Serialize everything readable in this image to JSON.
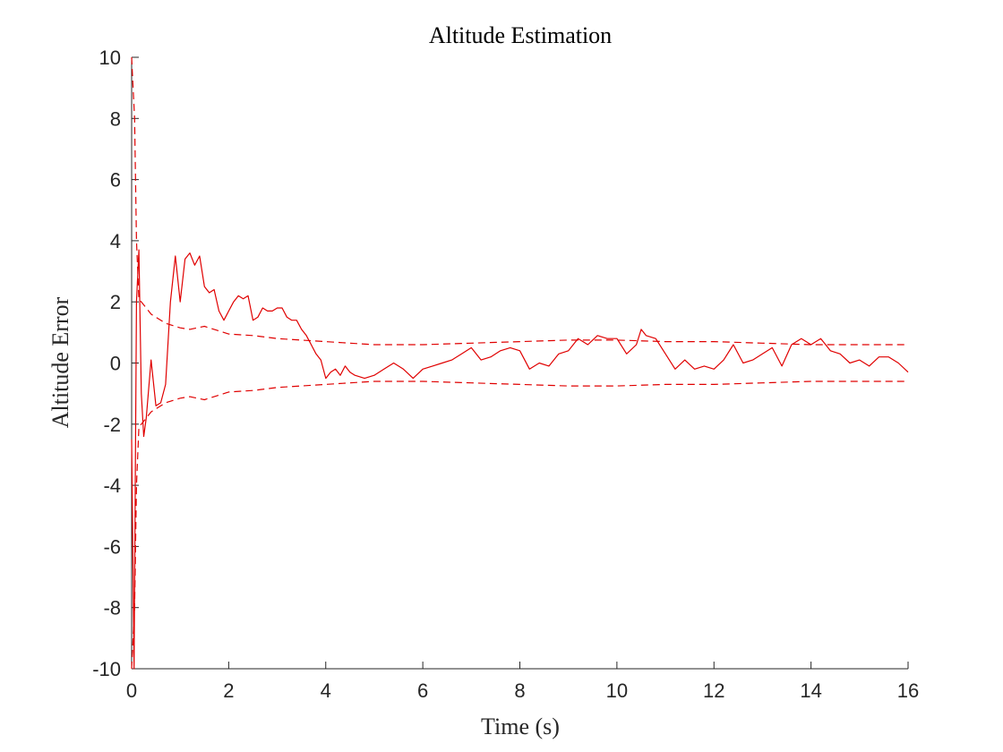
{
  "chart_data": {
    "type": "line",
    "title": "Altitude Estimation",
    "xlabel": "Time (s)",
    "ylabel": "Altitude Error",
    "xlim": [
      0,
      16
    ],
    "ylim": [
      -10,
      10
    ],
    "xticks": [
      "0",
      "2",
      "4",
      "6",
      "8",
      "10",
      "12",
      "14",
      "16"
    ],
    "yticks": [
      "10",
      "8",
      "6",
      "4",
      "2",
      "0",
      "-2",
      "-4",
      "-6",
      "-8",
      "-10"
    ],
    "grid": false,
    "legend": "none",
    "color": "#e00000",
    "series": [
      {
        "role": "error",
        "style": "solid",
        "x": [
          0.0,
          0.05,
          0.1,
          0.15,
          0.2,
          0.25,
          0.3,
          0.4,
          0.5,
          0.6,
          0.7,
          0.8,
          0.9,
          1.0,
          1.1,
          1.2,
          1.3,
          1.4,
          1.5,
          1.6,
          1.7,
          1.8,
          1.9,
          2.0,
          2.1,
          2.2,
          2.3,
          2.4,
          2.5,
          2.6,
          2.7,
          2.8,
          2.9,
          3.0,
          3.1,
          3.2,
          3.3,
          3.4,
          3.5,
          3.6,
          3.7,
          3.8,
          3.9,
          4.0,
          4.1,
          4.2,
          4.3,
          4.4,
          4.5,
          4.6,
          4.8,
          5.0,
          5.2,
          5.4,
          5.6,
          5.8,
          6.0,
          6.2,
          6.4,
          6.6,
          6.8,
          7.0,
          7.2,
          7.4,
          7.6,
          7.8,
          8.0,
          8.2,
          8.4,
          8.6,
          8.8,
          9.0,
          9.2,
          9.4,
          9.6,
          9.8,
          10.0,
          10.2,
          10.4,
          10.5,
          10.6,
          10.8,
          11.0,
          11.2,
          11.4,
          11.6,
          11.8,
          12.0,
          12.2,
          12.4,
          12.6,
          12.8,
          13.0,
          13.2,
          13.4,
          13.6,
          13.8,
          14.0,
          14.2,
          14.4,
          14.6,
          14.8,
          15.0,
          15.2,
          15.4,
          15.6,
          15.8,
          16.0
        ],
        "y": [
          -2.5,
          -10.0,
          2.0,
          3.7,
          -1.0,
          -2.4,
          -1.8,
          0.1,
          -1.4,
          -1.3,
          -0.7,
          2.0,
          3.5,
          2.0,
          3.4,
          3.6,
          3.2,
          3.5,
          2.5,
          2.3,
          2.4,
          1.7,
          1.4,
          1.7,
          2.0,
          2.2,
          2.1,
          2.2,
          1.4,
          1.5,
          1.8,
          1.7,
          1.7,
          1.8,
          1.8,
          1.5,
          1.4,
          1.4,
          1.1,
          0.9,
          0.6,
          0.3,
          0.1,
          -0.5,
          -0.3,
          -0.2,
          -0.4,
          -0.1,
          -0.3,
          -0.4,
          -0.5,
          -0.4,
          -0.2,
          0.0,
          -0.2,
          -0.5,
          -0.2,
          -0.1,
          0.0,
          0.1,
          0.3,
          0.5,
          0.1,
          0.2,
          0.4,
          0.5,
          0.4,
          -0.2,
          0.0,
          -0.1,
          0.3,
          0.4,
          0.8,
          0.6,
          0.9,
          0.8,
          0.8,
          0.3,
          0.6,
          1.1,
          0.9,
          0.8,
          0.3,
          -0.2,
          0.1,
          -0.2,
          -0.1,
          -0.2,
          0.1,
          0.6,
          0.0,
          0.1,
          0.3,
          0.5,
          -0.1,
          0.6,
          0.8,
          0.6,
          0.8,
          0.4,
          0.3,
          0.0,
          0.1,
          -0.1,
          0.2,
          0.2,
          0.0,
          -0.3
        ]
      },
      {
        "role": "upper-bound",
        "style": "dashed",
        "x": [
          0.0,
          0.03,
          0.06,
          0.1,
          0.15,
          0.2,
          0.3,
          0.4,
          0.5,
          0.7,
          1.0,
          1.2,
          1.5,
          2.0,
          2.5,
          3.0,
          3.5,
          4.0,
          5.0,
          6.0,
          7.0,
          8.0,
          9.0,
          10.0,
          11.0,
          12.0,
          13.0,
          14.0,
          15.0,
          16.0
        ],
        "y": [
          10.0,
          9.0,
          8.0,
          4.0,
          2.1,
          2.0,
          1.8,
          1.6,
          1.5,
          1.3,
          1.15,
          1.1,
          1.2,
          0.95,
          0.9,
          0.8,
          0.75,
          0.7,
          0.6,
          0.6,
          0.65,
          0.7,
          0.75,
          0.75,
          0.7,
          0.7,
          0.65,
          0.6,
          0.6,
          0.6
        ]
      },
      {
        "role": "lower-bound",
        "style": "dashed",
        "x": [
          0.0,
          0.03,
          0.06,
          0.1,
          0.15,
          0.2,
          0.3,
          0.4,
          0.5,
          0.7,
          1.0,
          1.2,
          1.5,
          2.0,
          2.5,
          3.0,
          3.5,
          4.0,
          5.0,
          6.0,
          7.0,
          8.0,
          9.0,
          10.0,
          11.0,
          12.0,
          13.0,
          14.0,
          15.0,
          16.0
        ],
        "y": [
          -10.0,
          -9.0,
          -8.0,
          -4.0,
          -2.1,
          -2.0,
          -1.8,
          -1.6,
          -1.5,
          -1.3,
          -1.15,
          -1.1,
          -1.2,
          -0.95,
          -0.9,
          -0.8,
          -0.75,
          -0.7,
          -0.6,
          -0.6,
          -0.65,
          -0.7,
          -0.75,
          -0.75,
          -0.7,
          -0.7,
          -0.65,
          -0.6,
          -0.6,
          -0.6
        ]
      }
    ]
  }
}
